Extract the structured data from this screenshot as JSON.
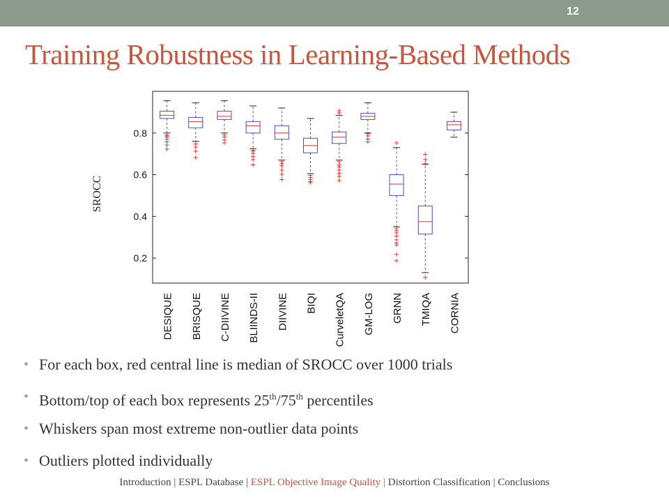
{
  "slide": {
    "number": "12",
    "title": "Training Robustness in Learning-Based Methods"
  },
  "bullets": {
    "b1": "For each box, red central line is median of SROCC over 1000 trials",
    "b2_pre": "Bottom/top of each box represents 25",
    "b2_sup1": "th",
    "b2_mid": "/75",
    "b2_sup2": "th",
    "b2_post": " percentiles",
    "b3": "Whiskers span most extreme non-outlier data points",
    "b4": "Outliers plotted individually"
  },
  "footer": {
    "items": [
      {
        "label": "Introduction",
        "active": false
      },
      {
        "label": "ESPL Database",
        "active": false
      },
      {
        "label": "ESPL Objective Image Quality",
        "active": true
      },
      {
        "label": "Distortion Classification",
        "active": false
      },
      {
        "label": "Conclusions",
        "active": false
      }
    ],
    "separator": "|"
  },
  "colors": {
    "title": "#c8553d",
    "box": "#4a4ad0",
    "median": "#e03030",
    "whisker": "#555555",
    "outlier": "#e02020",
    "bar": "#8c9a8c"
  },
  "chart_data": {
    "type": "boxplot",
    "ylabel": "SROCC",
    "yticks": [
      "0.2",
      "0.4",
      "0.6",
      "0.8"
    ],
    "ylim": [
      0.08,
      1.0
    ],
    "grid": false,
    "categories": [
      "DESIQUE",
      "BRISQUE",
      "C-DIIVINE",
      "BLIINDS-II",
      "DIIVINE",
      "BIQI",
      "CurveletQA",
      "GM-LOG",
      "GRNN",
      "TMIQA",
      "CORNIA"
    ],
    "boxes": [
      {
        "q1": 0.87,
        "median": 0.885,
        "q3": 0.905,
        "whisker_low": 0.8,
        "whisker_high": 0.955,
        "outliers": [
          0.795,
          0.79,
          0.785,
          0.775,
          0.76,
          0.745,
          0.725
        ]
      },
      {
        "q1": 0.825,
        "median": 0.855,
        "q3": 0.875,
        "whisker_low": 0.76,
        "whisker_high": 0.945,
        "outliers": [
          0.75,
          0.735,
          0.715,
          0.685
        ]
      },
      {
        "q1": 0.865,
        "median": 0.88,
        "q3": 0.905,
        "whisker_low": 0.8,
        "whisker_high": 0.955,
        "outliers": [
          0.795,
          0.785,
          0.77,
          0.755
        ]
      },
      {
        "q1": 0.8,
        "median": 0.835,
        "q3": 0.855,
        "whisker_low": 0.725,
        "whisker_high": 0.93,
        "outliers": [
          0.72,
          0.715,
          0.705,
          0.69,
          0.675,
          0.65
        ]
      },
      {
        "q1": 0.77,
        "median": 0.8,
        "q3": 0.835,
        "whisker_low": 0.67,
        "whisker_high": 0.92,
        "outliers": [
          0.665,
          0.655,
          0.645,
          0.625,
          0.605,
          0.58
        ]
      },
      {
        "q1": 0.705,
        "median": 0.74,
        "q3": 0.775,
        "whisker_low": 0.605,
        "whisker_high": 0.87,
        "outliers": [
          0.6,
          0.59,
          0.58,
          0.57,
          0.565
        ]
      },
      {
        "q1": 0.75,
        "median": 0.78,
        "q3": 0.805,
        "whisker_low": 0.67,
        "whisker_high": 0.885,
        "outliers": [
          0.665,
          0.65,
          0.64,
          0.625,
          0.61,
          0.595,
          0.575,
          0.9,
          0.91
        ]
      },
      {
        "q1": 0.865,
        "median": 0.88,
        "q3": 0.895,
        "whisker_low": 0.8,
        "whisker_high": 0.945,
        "outliers": [
          0.8,
          0.79,
          0.775,
          0.76
        ]
      },
      {
        "q1": 0.5,
        "median": 0.555,
        "q3": 0.6,
        "whisker_low": 0.35,
        "whisker_high": 0.73,
        "outliers": [
          0.755,
          0.345,
          0.335,
          0.325,
          0.31,
          0.29,
          0.275,
          0.265,
          0.22,
          0.19
        ]
      },
      {
        "q1": 0.315,
        "median": 0.375,
        "q3": 0.45,
        "whisker_low": 0.13,
        "whisker_high": 0.65,
        "outliers": [
          0.7,
          0.675,
          0.655,
          0.11
        ]
      },
      {
        "q1": 0.815,
        "median": 0.84,
        "q3": 0.855,
        "whisker_low": 0.78,
        "whisker_high": 0.9,
        "outliers": []
      }
    ]
  }
}
